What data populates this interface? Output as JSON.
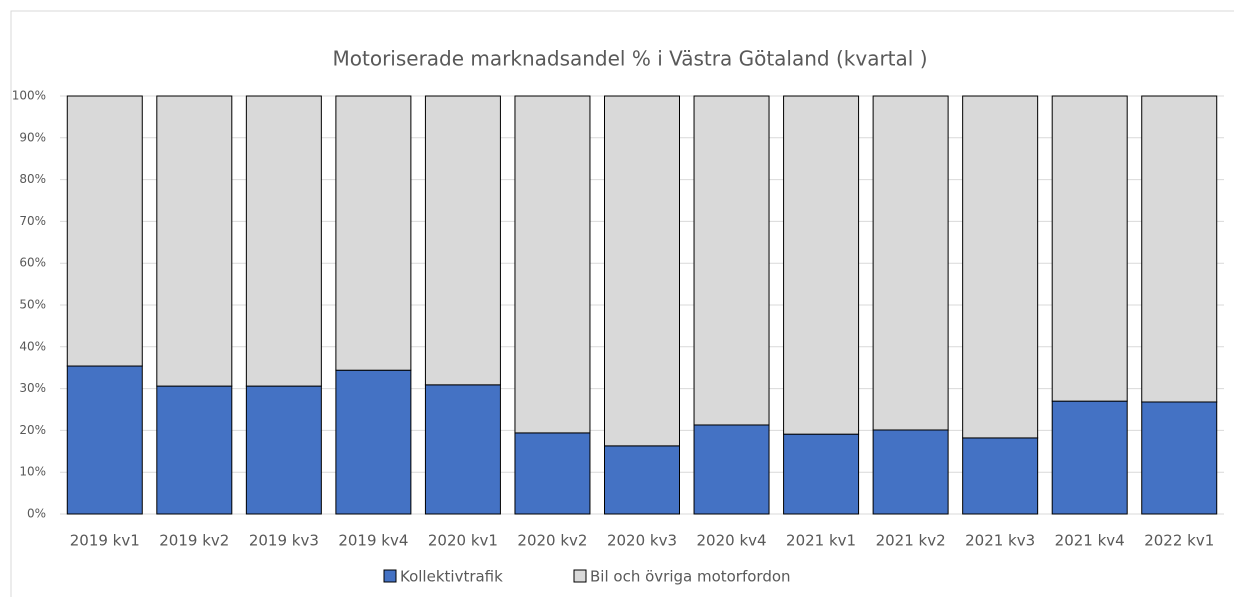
{
  "chart_data": {
    "type": "stacked_bar",
    "title": "Motoriserade marknadsandel % i Västra Götaland (kvartal )",
    "categories": [
      "2019 kv1",
      "2019 kv2",
      "2019 kv3",
      "2019 kv4",
      "2020 kv1",
      "2020 kv2",
      "2020 kv3",
      "2020 kv4",
      "2021 kv1",
      "2021 kv2",
      "2021 kv3",
      "2021 kv4",
      "2022 kv1"
    ],
    "series": [
      {
        "name": "Kollektivtrafik",
        "color": "#4472c4",
        "values": [
          35.4,
          30.6,
          30.6,
          34.4,
          30.9,
          19.4,
          16.3,
          21.3,
          19.1,
          20.1,
          18.2,
          27.0,
          26.8
        ]
      },
      {
        "name": "Bil och övriga motorfordon",
        "color": "#d9d9d9",
        "values": [
          64.6,
          69.4,
          69.4,
          65.6,
          69.1,
          80.6,
          83.7,
          78.7,
          80.9,
          79.9,
          81.8,
          73.0,
          73.2
        ]
      }
    ],
    "ylim": [
      0,
      100
    ],
    "yticks": [
      {
        "value": 0,
        "label": "0%"
      },
      {
        "value": 10,
        "label": "10%"
      },
      {
        "value": 20,
        "label": "20%"
      },
      {
        "value": 30,
        "label": "30%"
      },
      {
        "value": 40,
        "label": "40%"
      },
      {
        "value": 50,
        "label": "50%"
      },
      {
        "value": 60,
        "label": "60%"
      },
      {
        "value": 70,
        "label": "70%"
      },
      {
        "value": 80,
        "label": "80%"
      },
      {
        "value": 90,
        "label": "90%"
      },
      {
        "value": 100,
        "label": "100%"
      }
    ],
    "grid": true,
    "legend": "bottom"
  }
}
